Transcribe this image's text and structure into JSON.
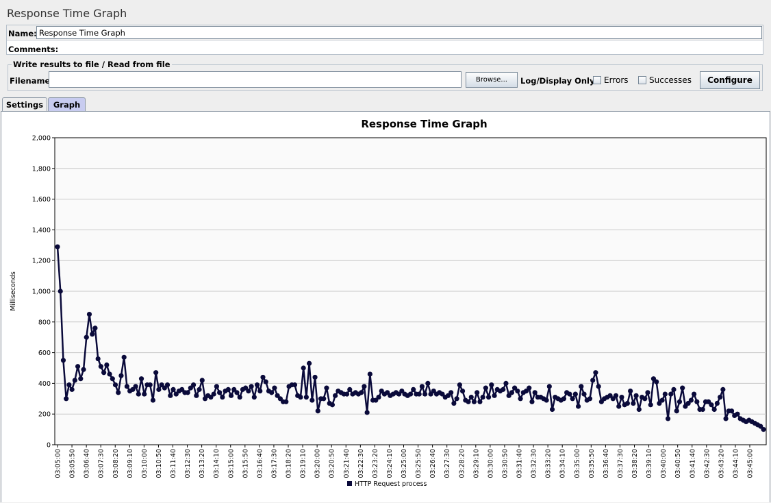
{
  "window": {
    "title": "Response Time Graph"
  },
  "form": {
    "name_label": "Name:",
    "name_value": "Response Time Graph",
    "comments_label": "Comments:"
  },
  "file_group": {
    "legend": "Write results to file / Read from file",
    "filename_label": "Filename",
    "filename_value": "",
    "browse_label": "Browse...",
    "log_display_label": "Log/Display Only:",
    "errors_label": "Errors",
    "errors_checked": false,
    "successes_label": "Successes",
    "successes_checked": false,
    "configure_label": "Configure"
  },
  "tabs": [
    {
      "label": "Settings",
      "active": false
    },
    {
      "label": "Graph",
      "active": true
    }
  ],
  "colors": {
    "series": "#0a0a3a",
    "active_tab": "#c8ccf0"
  },
  "chart_data": {
    "type": "line",
    "title": "Response Time Graph",
    "ylabel": "Milliseconds",
    "xlabel": "",
    "ylim": [
      0,
      2000
    ],
    "y_ticks": [
      "0",
      "200",
      "400",
      "600",
      "800",
      "1,000",
      "1,200",
      "1,400",
      "1,600",
      "1,800",
      "2,000"
    ],
    "x_ticks": [
      "03:05:00",
      "03:05:50",
      "03:06:40",
      "03:07:30",
      "03:08:20",
      "03:09:10",
      "03:10:00",
      "03:10:50",
      "03:11:40",
      "03:12:30",
      "03:13:20",
      "03:14:10",
      "03:15:00",
      "03:15:50",
      "03:16:40",
      "03:17:30",
      "03:18:20",
      "03:19:10",
      "03:20:00",
      "03:20:50",
      "03:21:40",
      "03:22:30",
      "03:23:20",
      "03:24:10",
      "03:25:00",
      "03:25:50",
      "03:26:40",
      "03:27:30",
      "03:28:20",
      "03:29:10",
      "03:30:00",
      "03:30:50",
      "03:31:40",
      "03:32:30",
      "03:33:20",
      "03:34:10",
      "03:35:00",
      "03:35:50",
      "03:36:40",
      "03:37:30",
      "03:38:20",
      "03:39:10",
      "03:40:00",
      "03:40:50",
      "03:41:40",
      "03:42:30",
      "03:43:20",
      "03:44:10",
      "03:45:00"
    ],
    "grid": true,
    "legend_position": "bottom",
    "series": [
      {
        "name": "HTTP Request process",
        "values": [
          1290,
          1000,
          550,
          300,
          390,
          360,
          420,
          510,
          430,
          490,
          700,
          850,
          720,
          760,
          560,
          510,
          470,
          520,
          460,
          430,
          390,
          340,
          450,
          570,
          380,
          350,
          360,
          380,
          330,
          430,
          330,
          390,
          390,
          290,
          470,
          360,
          390,
          370,
          390,
          320,
          360,
          330,
          350,
          360,
          340,
          340,
          370,
          390,
          320,
          360,
          420,
          300,
          320,
          310,
          330,
          380,
          340,
          310,
          350,
          360,
          320,
          360,
          340,
          310,
          360,
          370,
          350,
          380,
          310,
          390,
          350,
          440,
          410,
          350,
          340,
          370,
          320,
          300,
          280,
          280,
          380,
          390,
          390,
          320,
          310,
          500,
          310,
          530,
          290,
          440,
          220,
          300,
          300,
          370,
          270,
          260,
          320,
          350,
          340,
          330,
          330,
          360,
          330,
          340,
          330,
          340,
          380,
          210,
          460,
          290,
          290,
          310,
          350,
          330,
          340,
          320,
          330,
          340,
          330,
          350,
          330,
          320,
          330,
          360,
          330,
          330,
          380,
          330,
          400,
          330,
          350,
          330,
          340,
          330,
          310,
          320,
          340,
          270,
          300,
          390,
          350,
          290,
          280,
          310,
          280,
          340,
          280,
          310,
          370,
          310,
          390,
          320,
          360,
          350,
          360,
          400,
          320,
          340,
          370,
          350,
          300,
          340,
          350,
          370,
          280,
          340,
          310,
          310,
          300,
          290,
          380,
          230,
          310,
          300,
          290,
          300,
          340,
          330,
          300,
          330,
          250,
          380,
          330,
          290,
          300,
          420,
          470,
          380,
          280,
          300,
          310,
          320,
          300,
          320,
          250,
          310,
          260,
          270,
          350,
          270,
          320,
          230,
          310,
          300,
          340,
          260,
          430,
          410,
          270,
          290,
          330,
          170,
          330,
          360,
          220,
          280,
          370,
          250,
          270,
          290,
          330,
          280,
          230,
          230,
          280,
          280,
          260,
          230,
          270,
          310,
          360,
          170,
          220,
          220,
          190,
          200,
          170,
          160,
          150,
          160,
          150,
          140,
          130,
          120,
          100
        ]
      }
    ]
  }
}
